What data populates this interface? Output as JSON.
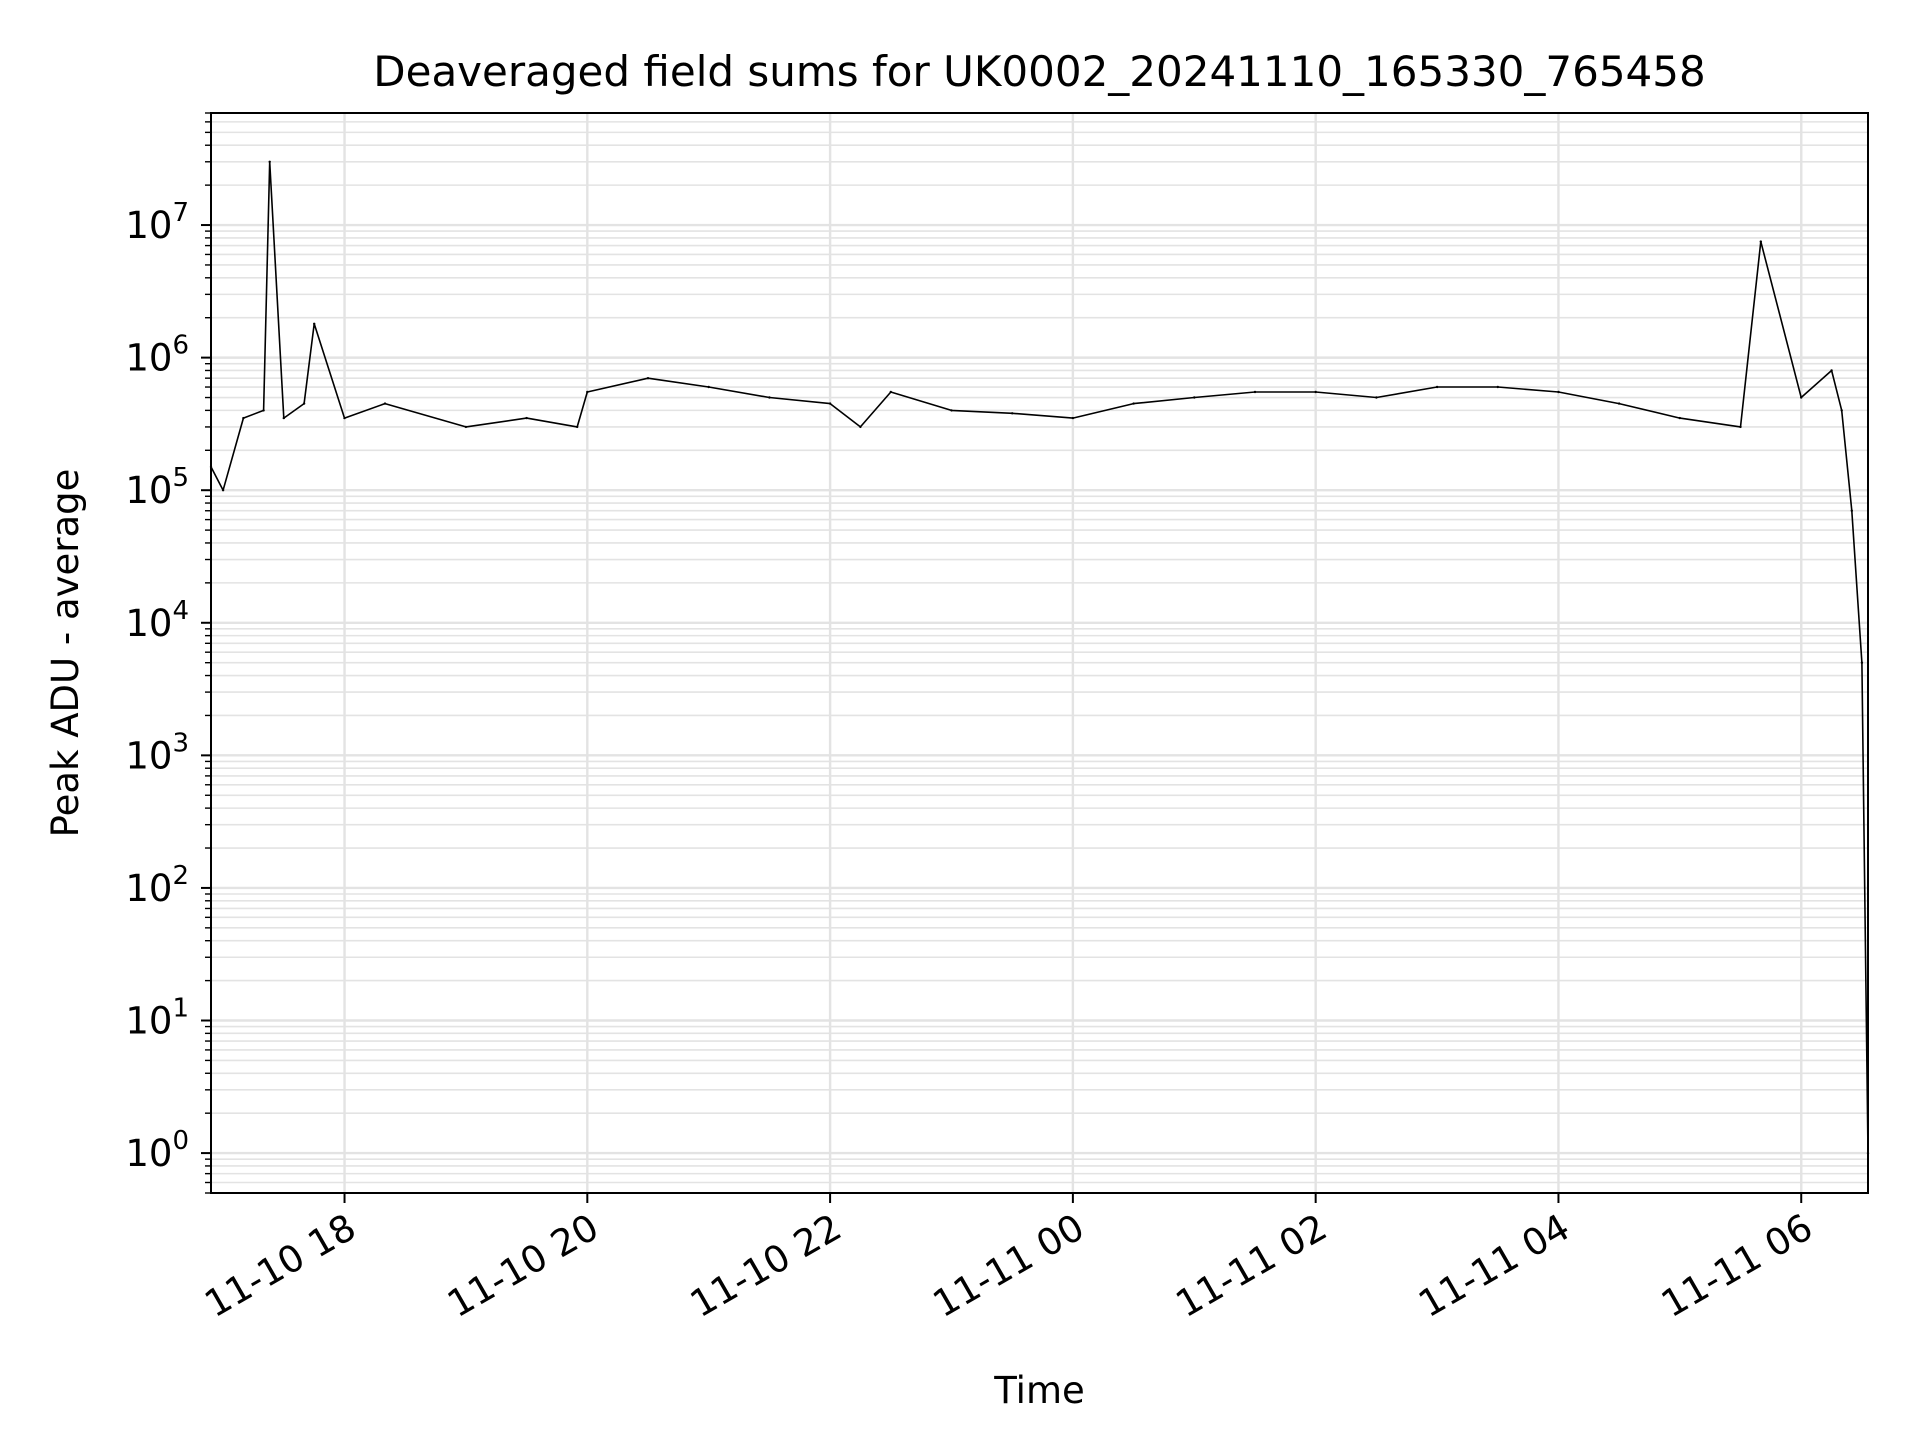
{
  "chart_data": {
    "type": "line",
    "title": "Deaveraged field sums for UK0002_20241110_165330_765458",
    "xlabel": "Time",
    "ylabel": "Peak ADU - average",
    "yscale": "log",
    "xlim": [
      "2024-11-10 16:54",
      "2024-11-11 06:33"
    ],
    "ylim": [
      0.5,
      70000000
    ],
    "grid": "major and minor",
    "x_ticks": [
      "2024-11-10 18:00",
      "2024-11-10 20:00",
      "2024-11-10 22:00",
      "2024-11-11 00:00",
      "2024-11-11 02:00",
      "2024-11-11 04:00",
      "2024-11-11 06:00"
    ],
    "x_tick_labels": [
      "11-10 18",
      "11-10 20",
      "11-10 22",
      "11-11 00",
      "11-11 02",
      "11-11 04",
      "11-11 06"
    ],
    "y_tick_labels": [
      {
        "base": "10",
        "exp": "0"
      },
      {
        "base": "10",
        "exp": "1"
      },
      {
        "base": "10",
        "exp": "2"
      },
      {
        "base": "10",
        "exp": "3"
      },
      {
        "base": "10",
        "exp": "4"
      },
      {
        "base": "10",
        "exp": "5"
      },
      {
        "base": "10",
        "exp": "6"
      },
      {
        "base": "10",
        "exp": "7"
      }
    ],
    "series": [
      {
        "color": "#000000",
        "x": [
          "2024-11-10 16:54",
          "2024-11-10 17:00",
          "2024-11-10 17:10",
          "2024-11-10 17:20",
          "2024-11-10 17:23",
          "2024-11-10 17:30",
          "2024-11-10 17:40",
          "2024-11-10 17:45",
          "2024-11-10 18:00",
          "2024-11-10 18:20",
          "2024-11-10 19:00",
          "2024-11-10 19:30",
          "2024-11-10 19:55",
          "2024-11-10 20:00",
          "2024-11-10 20:30",
          "2024-11-10 21:00",
          "2024-11-10 21:30",
          "2024-11-10 22:00",
          "2024-11-10 22:15",
          "2024-11-10 22:30",
          "2024-11-10 23:00",
          "2024-11-10 23:30",
          "2024-11-11 00:00",
          "2024-11-11 00:30",
          "2024-11-11 01:00",
          "2024-11-11 01:30",
          "2024-11-11 02:00",
          "2024-11-11 02:30",
          "2024-11-11 03:00",
          "2024-11-11 03:30",
          "2024-11-11 04:00",
          "2024-11-11 04:30",
          "2024-11-11 05:00",
          "2024-11-11 05:30",
          "2024-11-11 05:40",
          "2024-11-11 06:00",
          "2024-11-11 06:15",
          "2024-11-11 06:20",
          "2024-11-11 06:25",
          "2024-11-11 06:30",
          "2024-11-11 06:33"
        ],
        "y": [
          150000,
          100000,
          350000,
          400000,
          30000000,
          350000,
          450000,
          1800000,
          350000,
          450000,
          300000,
          350000,
          300000,
          550000,
          700000,
          600000,
          500000,
          450000,
          300000,
          550000,
          400000,
          380000,
          350000,
          450000,
          500000,
          550000,
          550000,
          500000,
          600000,
          600000,
          550000,
          450000,
          350000,
          300000,
          7500000,
          500000,
          800000,
          400000,
          70000,
          5000,
          1
        ]
      }
    ]
  }
}
